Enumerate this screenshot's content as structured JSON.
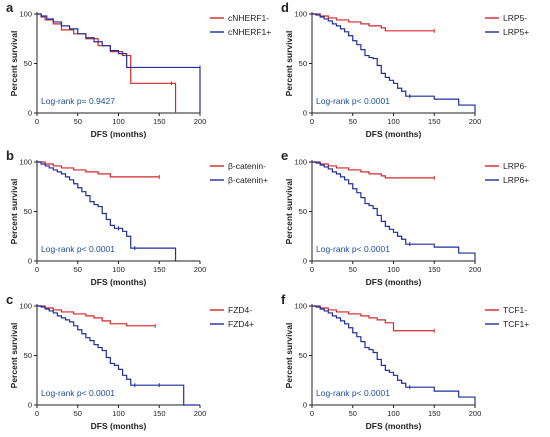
{
  "chart_data": [
    {
      "panel": "a",
      "type": "line",
      "xlabel": "DFS (months)",
      "ylabel": "Percent survival",
      "xlim": [
        0,
        200
      ],
      "ylim": [
        0,
        100
      ],
      "xticks": [
        "0",
        "50",
        "100",
        "150",
        "200"
      ],
      "yticks": [
        "0",
        "50",
        "100"
      ],
      "annotation": "Log-rank p= 0.9427",
      "grid": false,
      "legend_position": "top-right",
      "series": [
        {
          "name": "cNHERF1-",
          "color": "#d62728",
          "x": [
            0,
            5,
            10,
            20,
            30,
            45,
            60,
            75,
            90,
            105,
            115,
            165,
            170
          ],
          "y": [
            100,
            97,
            94,
            90,
            84,
            80,
            75,
            68,
            62,
            58,
            30,
            30,
            0
          ]
        },
        {
          "name": "cNHERF1+",
          "color": "#1f2f9c",
          "x": [
            0,
            5,
            12,
            20,
            30,
            40,
            50,
            60,
            70,
            80,
            90,
            100,
            110,
            200,
            200
          ],
          "y": [
            100,
            98,
            95,
            92,
            88,
            85,
            80,
            76,
            72,
            68,
            63,
            60,
            46,
            46,
            0
          ]
        }
      ]
    },
    {
      "panel": "b",
      "type": "line",
      "xlabel": "DFS (months)",
      "ylabel": "Percent survival",
      "xlim": [
        0,
        200
      ],
      "ylim": [
        0,
        100
      ],
      "xticks": [
        "0",
        "50",
        "100",
        "150",
        "200"
      ],
      "yticks": [
        "0",
        "50",
        "100"
      ],
      "annotation": "Log-rank p< 0.0001",
      "grid": false,
      "legend_position": "top-right",
      "series": [
        {
          "name": "β-catenin-",
          "color": "#d62728",
          "x": [
            0,
            10,
            20,
            30,
            45,
            60,
            75,
            90,
            150
          ],
          "y": [
            100,
            98,
            96,
            94,
            92,
            90,
            88,
            85,
            85
          ]
        },
        {
          "name": "β-catenin+",
          "color": "#1f2f9c",
          "x": [
            0,
            5,
            10,
            15,
            20,
            25,
            30,
            35,
            40,
            45,
            50,
            55,
            60,
            65,
            70,
            75,
            80,
            85,
            90,
            95,
            100,
            105,
            110,
            115,
            120,
            170
          ],
          "y": [
            100,
            98,
            96,
            94,
            92,
            90,
            88,
            85,
            82,
            78,
            74,
            70,
            66,
            60,
            57,
            55,
            48,
            42,
            36,
            33,
            33,
            30,
            25,
            13,
            13,
            0
          ]
        }
      ]
    },
    {
      "panel": "c",
      "type": "line",
      "xlabel": "DFS (months)",
      "ylabel": "Percent survival",
      "xlim": [
        0,
        200
      ],
      "ylim": [
        0,
        100
      ],
      "xticks": [
        "0",
        "50",
        "100",
        "150",
        "200"
      ],
      "yticks": [
        "0",
        "50",
        "100"
      ],
      "annotation": "Log-rank p< 0.0001",
      "grid": false,
      "legend_position": "top-right",
      "series": [
        {
          "name": "FZD4-",
          "color": "#d62728",
          "x": [
            0,
            10,
            20,
            30,
            45,
            60,
            70,
            80,
            90,
            110,
            145
          ],
          "y": [
            100,
            98,
            96,
            94,
            92,
            90,
            88,
            85,
            82,
            80,
            80
          ]
        },
        {
          "name": "FZD4+",
          "color": "#1f2f9c",
          "x": [
            0,
            5,
            10,
            15,
            20,
            25,
            30,
            35,
            40,
            45,
            50,
            55,
            60,
            65,
            70,
            75,
            80,
            85,
            90,
            95,
            100,
            105,
            110,
            115,
            120,
            150,
            180,
            200
          ],
          "y": [
            100,
            99,
            97,
            95,
            93,
            90,
            88,
            86,
            84,
            80,
            76,
            72,
            68,
            65,
            61,
            58,
            55,
            48,
            42,
            40,
            36,
            30,
            26,
            20,
            20,
            20,
            0,
            0
          ]
        }
      ]
    },
    {
      "panel": "d",
      "type": "line",
      "xlabel": "DFS (months)",
      "ylabel": "Percent survival",
      "xlim": [
        0,
        200
      ],
      "ylim": [
        0,
        100
      ],
      "xticks": [
        "0",
        "50",
        "100",
        "150",
        "200"
      ],
      "yticks": [
        "0",
        "50",
        "100"
      ],
      "annotation": "Log-rank p< 0.0001",
      "grid": false,
      "legend_position": "top-right",
      "series": [
        {
          "name": "LRP5-",
          "color": "#d62728",
          "x": [
            0,
            10,
            20,
            30,
            45,
            60,
            70,
            85,
            90,
            150
          ],
          "y": [
            100,
            98,
            96,
            94,
            92,
            90,
            88,
            86,
            83,
            83
          ]
        },
        {
          "name": "LRP5+",
          "color": "#1f2f9c",
          "x": [
            0,
            5,
            10,
            15,
            20,
            25,
            30,
            35,
            40,
            45,
            50,
            55,
            60,
            65,
            70,
            75,
            80,
            85,
            90,
            95,
            100,
            105,
            110,
            115,
            120,
            150,
            180,
            200
          ],
          "y": [
            100,
            99,
            97,
            95,
            93,
            90,
            88,
            85,
            82,
            78,
            73,
            69,
            64,
            58,
            56,
            55,
            48,
            40,
            36,
            33,
            30,
            25,
            22,
            17,
            17,
            14,
            8,
            0
          ]
        }
      ]
    },
    {
      "panel": "e",
      "type": "line",
      "xlabel": "DFS (months)",
      "ylabel": "Percent survival",
      "xlim": [
        0,
        200
      ],
      "ylim": [
        0,
        100
      ],
      "xticks": [
        "0",
        "50",
        "100",
        "150",
        "200"
      ],
      "yticks": [
        "0",
        "50",
        "100"
      ],
      "annotation": "Log-rank p< 0.0001",
      "grid": false,
      "legend_position": "top-right",
      "series": [
        {
          "name": "LRP6-",
          "color": "#d62728",
          "x": [
            0,
            10,
            20,
            30,
            45,
            60,
            70,
            85,
            90,
            150
          ],
          "y": [
            100,
            98,
            96,
            94,
            92,
            90,
            88,
            86,
            84,
            84
          ]
        },
        {
          "name": "LRP6+",
          "color": "#1f2f9c",
          "x": [
            0,
            5,
            10,
            15,
            20,
            25,
            30,
            35,
            40,
            45,
            50,
            55,
            60,
            65,
            70,
            75,
            80,
            85,
            90,
            95,
            100,
            105,
            110,
            115,
            120,
            150,
            180,
            200
          ],
          "y": [
            100,
            99,
            97,
            95,
            93,
            90,
            88,
            85,
            82,
            78,
            73,
            69,
            64,
            58,
            56,
            53,
            46,
            40,
            35,
            32,
            29,
            25,
            22,
            17,
            17,
            14,
            8,
            0
          ]
        }
      ]
    },
    {
      "panel": "f",
      "type": "line",
      "xlabel": "DFS (months)",
      "ylabel": "Percent survival",
      "xlim": [
        0,
        200
      ],
      "ylim": [
        0,
        100
      ],
      "xticks": [
        "0",
        "50",
        "100",
        "150",
        "200"
      ],
      "yticks": [
        "0",
        "50",
        "100"
      ],
      "annotation": "Log-rank p< 0.0001",
      "grid": false,
      "legend_position": "top-right",
      "series": [
        {
          "name": "TCF1-",
          "color": "#d62728",
          "x": [
            0,
            10,
            20,
            30,
            45,
            60,
            70,
            80,
            90,
            100,
            150
          ],
          "y": [
            100,
            98,
            96,
            94,
            92,
            90,
            88,
            86,
            83,
            75,
            75
          ]
        },
        {
          "name": "TCF1+",
          "color": "#1f2f9c",
          "x": [
            0,
            5,
            10,
            15,
            20,
            25,
            30,
            35,
            40,
            45,
            50,
            55,
            60,
            65,
            70,
            75,
            80,
            85,
            90,
            95,
            100,
            105,
            110,
            115,
            120,
            150,
            180,
            200
          ],
          "y": [
            100,
            99,
            97,
            95,
            93,
            90,
            88,
            85,
            82,
            78,
            73,
            69,
            64,
            58,
            56,
            53,
            46,
            40,
            35,
            33,
            30,
            25,
            22,
            18,
            18,
            14,
            8,
            0
          ]
        }
      ]
    }
  ]
}
